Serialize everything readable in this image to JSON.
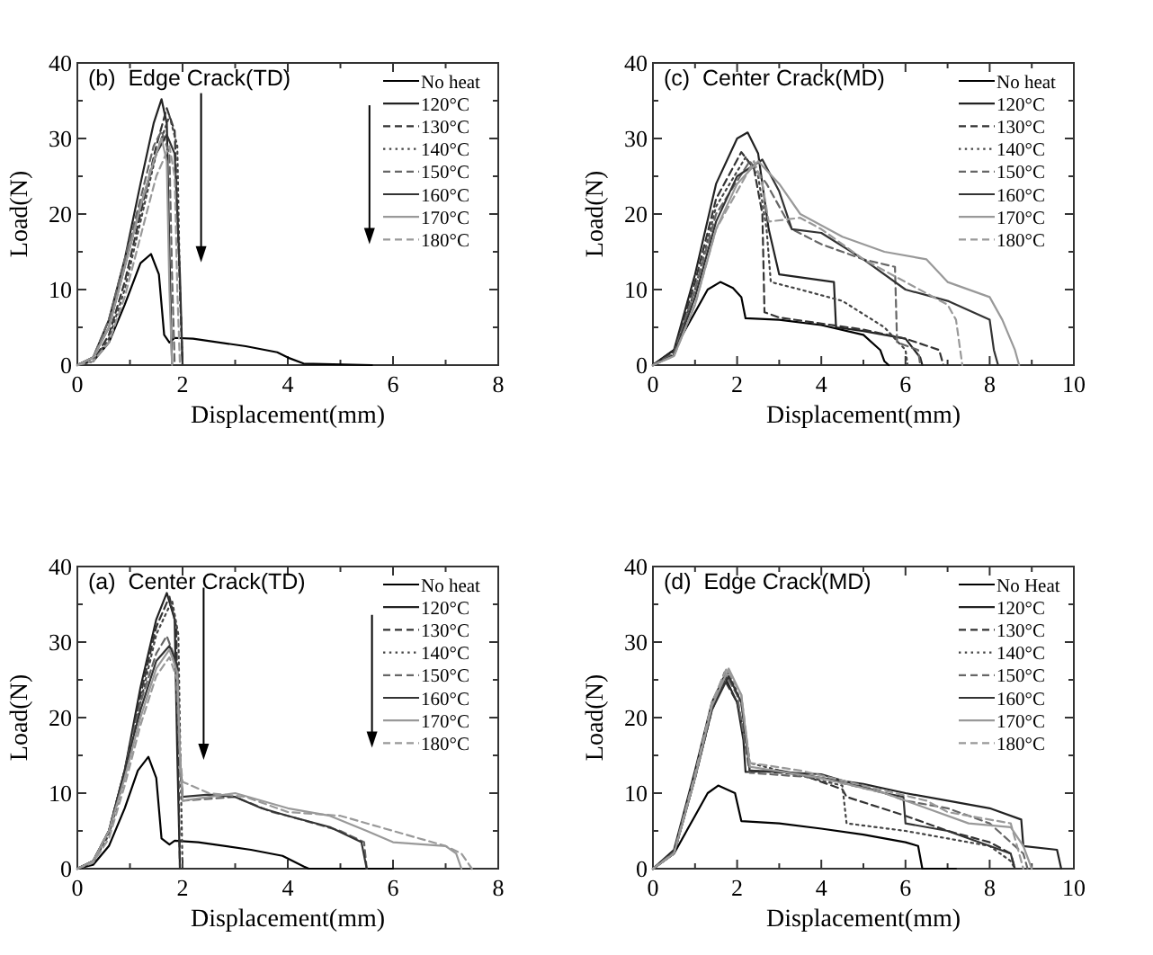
{
  "chart_data": [
    {
      "type": "line",
      "title": "(b)  Edge Crack(TD)",
      "xlabel": "Displacement(mm)",
      "ylabel": "Load(N)",
      "legend": "top right",
      "grid": false,
      "xlim": [
        0,
        8
      ],
      "xticks": [
        0,
        {
          "value": 1,
          "label": null
        },
        2,
        {
          "value": 3,
          "label": null
        },
        4,
        {
          "value": 5,
          "label": null
        },
        6,
        {
          "value": 7,
          "label": null
        },
        8
      ],
      "ylim": [
        0,
        40
      ],
      "yticks": [
        0,
        {
          "value": 5,
          "label": null
        },
        10,
        {
          "value": 15,
          "label": null
        },
        20,
        {
          "value": 25,
          "label": null
        },
        30,
        {
          "value": 35,
          "label": null
        },
        40
      ],
      "series": [
        {
          "name": "No heat",
          "color": "#000000",
          "line_style": "solid",
          "x": [
            0,
            0.3,
            0.6,
            0.9,
            1.2,
            1.4,
            1.55,
            1.65,
            1.75,
            1.85,
            2.2,
            3.2,
            3.8,
            4.0,
            4.3,
            5.6
          ],
          "values": [
            0,
            0.5,
            3,
            8,
            13.5,
            14.7,
            12,
            4,
            3,
            3.6,
            3.5,
            2.5,
            1.7,
            1.0,
            0.2,
            0
          ]
        },
        {
          "name": "120°C",
          "color": "#222222",
          "line_style": "solid",
          "x": [
            0,
            0.3,
            0.6,
            0.9,
            1.2,
            1.45,
            1.6,
            1.7,
            1.75,
            1.8
          ],
          "values": [
            0,
            1,
            6,
            14,
            24,
            32,
            35.2,
            32,
            15,
            0
          ]
        },
        {
          "name": "130°C",
          "color": "#333333",
          "line_style": "dashed",
          "x": [
            0,
            0.3,
            0.6,
            0.9,
            1.2,
            1.5,
            1.7,
            1.85,
            1.95,
            2.0
          ],
          "values": [
            0,
            0.5,
            4,
            11,
            20,
            29,
            34,
            31,
            10,
            0
          ]
        },
        {
          "name": "140°C",
          "color": "#444444",
          "line_style": "dotted",
          "x": [
            0,
            0.3,
            0.6,
            0.9,
            1.2,
            1.5,
            1.75,
            1.9,
            1.95,
            2.0
          ],
          "values": [
            0,
            0.5,
            3.5,
            10,
            19,
            28,
            33,
            29,
            10,
            0
          ]
        },
        {
          "name": "150°C",
          "color": "#666666",
          "line_style": "dashed",
          "x": [
            0,
            0.3,
            0.6,
            0.9,
            1.2,
            1.45,
            1.6,
            1.75,
            1.8,
            1.85
          ],
          "values": [
            0,
            1,
            6,
            14,
            22,
            29,
            31,
            28,
            12,
            0
          ]
        },
        {
          "name": "160°C",
          "color": "#333333",
          "line_style": "solid",
          "x": [
            0,
            0.3,
            0.6,
            0.9,
            1.2,
            1.5,
            1.7,
            1.85,
            1.95,
            2.0
          ],
          "values": [
            0,
            1,
            5,
            13,
            21,
            28,
            30.5,
            28,
            12,
            0
          ]
        },
        {
          "name": "170°C",
          "color": "#999999",
          "line_style": "solid",
          "x": [
            0,
            0.3,
            0.6,
            0.9,
            1.2,
            1.45,
            1.6,
            1.7,
            1.75,
            1.8
          ],
          "values": [
            0,
            1,
            5,
            13,
            21,
            27,
            30,
            27,
            10,
            0
          ]
        },
        {
          "name": "180°C",
          "color": "#999999",
          "line_style": "dashed",
          "x": [
            0,
            0.3,
            0.6,
            0.9,
            1.2,
            1.5,
            1.75,
            1.85,
            1.9,
            1.95
          ],
          "values": [
            0,
            0.5,
            3,
            9,
            17,
            25,
            29,
            25,
            10,
            0
          ]
        }
      ]
    },
    {
      "type": "line",
      "title": "(c)  Center Crack(MD)",
      "xlabel": "Displacement(mm)",
      "ylabel": "Load(N)",
      "legend": "top right",
      "grid": false,
      "xlim": [
        0,
        10
      ],
      "xticks": [
        0,
        {
          "value": 1,
          "label": null
        },
        2,
        {
          "value": 3,
          "label": null
        },
        4,
        {
          "value": 5,
          "label": null
        },
        6,
        {
          "value": 7,
          "label": null
        },
        8,
        {
          "value": 9,
          "label": null
        },
        10
      ],
      "ylim": [
        0,
        40
      ],
      "yticks": [
        0,
        {
          "value": 5,
          "label": null
        },
        10,
        {
          "value": 15,
          "label": null
        },
        20,
        {
          "value": 25,
          "label": null
        },
        30,
        {
          "value": 35,
          "label": null
        },
        40
      ],
      "series": [
        {
          "name": "No heat",
          "color": "#000000",
          "line_style": "solid",
          "x": [
            0,
            0.5,
            1.0,
            1.3,
            1.6,
            1.9,
            2.1,
            2.2,
            3,
            4,
            5,
            5.4,
            5.5,
            5.6
          ],
          "values": [
            0,
            2,
            7,
            10,
            11,
            10.2,
            9,
            6.2,
            6,
            5.3,
            4,
            2,
            0.5,
            0
          ]
        },
        {
          "name": "120°C",
          "color": "#222222",
          "line_style": "solid",
          "x": [
            0,
            0.5,
            1,
            1.5,
            2,
            2.25,
            2.5,
            2.75,
            3,
            4.3,
            4.35,
            5,
            6,
            6.35,
            6.4
          ],
          "values": [
            0,
            2,
            12,
            24,
            30,
            30.8,
            28,
            18,
            12,
            11,
            5,
            4.5,
            3.5,
            1,
            0
          ]
        },
        {
          "name": "130°C",
          "color": "#333333",
          "line_style": "dashed",
          "x": [
            0,
            0.5,
            1,
            1.5,
            2.1,
            2.4,
            2.6,
            2.65,
            3,
            4,
            5,
            6,
            6.8,
            6.9
          ],
          "values": [
            0,
            1.8,
            11,
            22,
            28.2,
            26,
            20,
            7,
            6.3,
            5.5,
            4.7,
            3.5,
            2,
            0
          ]
        },
        {
          "name": "140°C",
          "color": "#444444",
          "line_style": "dotted",
          "x": [
            0,
            0.5,
            1,
            1.5,
            2.2,
            2.5,
            2.7,
            2.8,
            3.5,
            4.5,
            5.5,
            6,
            6.05
          ],
          "values": [
            0,
            1.5,
            10,
            21,
            27.5,
            25,
            18,
            11,
            10,
            8.5,
            5,
            2,
            0
          ]
        },
        {
          "name": "150°C",
          "color": "#666666",
          "line_style": "dashed",
          "x": [
            0,
            0.5,
            1,
            1.5,
            2.3,
            2.7,
            3,
            3.3,
            4,
            5,
            5.75,
            5.8,
            6.3,
            6.35
          ],
          "values": [
            0,
            1.5,
            10,
            20,
            27,
            24,
            21,
            18,
            16,
            14,
            13,
            3,
            2,
            0
          ]
        },
        {
          "name": "160°C",
          "color": "#333333",
          "line_style": "solid",
          "x": [
            0,
            0.5,
            1,
            1.5,
            2,
            2.6,
            3,
            3.3,
            4,
            5,
            6,
            7,
            8.0,
            8.1,
            8.2
          ],
          "values": [
            0,
            1.3,
            9,
            19,
            25,
            27.2,
            23,
            18,
            17.5,
            14,
            10,
            8.5,
            6,
            2,
            0
          ]
        },
        {
          "name": "170°C",
          "color": "#999999",
          "line_style": "solid",
          "x": [
            0,
            0.5,
            1,
            1.5,
            2,
            2.5,
            3,
            3.5,
            4.5,
            5.5,
            6.5,
            7,
            8,
            8.3,
            8.6,
            8.7
          ],
          "values": [
            0,
            1.2,
            8,
            18,
            24,
            27,
            24,
            20,
            17,
            15,
            14,
            11,
            9,
            6,
            2,
            0
          ]
        },
        {
          "name": "180°C",
          "color": "#999999",
          "line_style": "dashed",
          "x": [
            0,
            0.5,
            1,
            1.5,
            2.4,
            2.6,
            2.75,
            3.5,
            4,
            5,
            6,
            7,
            7.2,
            7.35
          ],
          "values": [
            0,
            1.2,
            8,
            18,
            27,
            24,
            19,
            19.5,
            18,
            14,
            11,
            8,
            6,
            0
          ]
        }
      ]
    },
    {
      "type": "line",
      "title": "(a)  Center Crack(TD)",
      "xlabel": "Displacement(mm)",
      "ylabel": "Load(N)",
      "legend": "top right",
      "grid": false,
      "xlim": [
        0,
        8
      ],
      "xticks": [
        0,
        {
          "value": 1,
          "label": null
        },
        2,
        {
          "value": 3,
          "label": null
        },
        4,
        {
          "value": 5,
          "label": null
        },
        6,
        {
          "value": 7,
          "label": null
        },
        8
      ],
      "ylim": [
        0,
        40
      ],
      "yticks": [
        0,
        {
          "value": 5,
          "label": null
        },
        10,
        {
          "value": 15,
          "label": null
        },
        20,
        {
          "value": 25,
          "label": null
        },
        30,
        {
          "value": 35,
          "label": null
        },
        40
      ],
      "series": [
        {
          "name": "No heat",
          "color": "#000000",
          "line_style": "solid",
          "x": [
            0,
            0.3,
            0.6,
            0.9,
            1.15,
            1.35,
            1.5,
            1.6,
            1.75,
            1.85,
            2.3,
            3.3,
            3.9,
            4.3,
            4.4,
            6.0
          ],
          "values": [
            0,
            0.5,
            3,
            8,
            13,
            14.8,
            12,
            4,
            3.2,
            3.7,
            3.5,
            2.5,
            1.7,
            0.3,
            0,
            0
          ]
        },
        {
          "name": "120°C",
          "color": "#222222",
          "line_style": "solid",
          "x": [
            0,
            0.3,
            0.6,
            0.9,
            1.2,
            1.5,
            1.7,
            1.85,
            1.9,
            1.95
          ],
          "values": [
            0,
            1,
            5,
            13,
            24,
            33,
            36.5,
            33,
            15,
            0
          ]
        },
        {
          "name": "130°C",
          "color": "#333333",
          "line_style": "dashed",
          "x": [
            0,
            0.3,
            0.6,
            0.9,
            1.2,
            1.5,
            1.75,
            1.88,
            1.92,
            1.95
          ],
          "values": [
            0,
            1,
            5,
            13,
            23,
            32,
            36,
            32,
            14,
            0
          ]
        },
        {
          "name": "140°C",
          "color": "#444444",
          "line_style": "dotted",
          "x": [
            0,
            0.3,
            0.6,
            0.9,
            1.2,
            1.5,
            1.8,
            1.92,
            1.96,
            2.0
          ],
          "values": [
            0,
            0.8,
            4.5,
            12,
            22,
            31,
            35.5,
            31,
            14,
            0
          ]
        },
        {
          "name": "150°C",
          "color": "#666666",
          "line_style": "dashed",
          "x": [
            0,
            0.3,
            0.6,
            0.9,
            1.2,
            1.5,
            1.7,
            1.85,
            1.95,
            2.0,
            3.0,
            3.7,
            4.0,
            5.0,
            5.45,
            5.5
          ],
          "values": [
            0,
            1,
            5,
            13,
            22,
            28.5,
            30.8,
            28,
            15,
            9,
            9.5,
            7.5,
            7,
            5,
            3.5,
            0
          ]
        },
        {
          "name": "160°C",
          "color": "#333333",
          "line_style": "solid",
          "x": [
            0,
            0.3,
            0.6,
            0.9,
            1.2,
            1.5,
            1.75,
            1.9,
            1.95,
            2.0,
            2.5,
            3.0,
            3.5,
            4.0,
            4.8,
            5.4,
            5.5
          ],
          "values": [
            0,
            1,
            5,
            13,
            21,
            27.5,
            29.5,
            27,
            15,
            9.5,
            9.8,
            9.5,
            8,
            7,
            5.5,
            3.5,
            0
          ]
        },
        {
          "name": "170°C",
          "color": "#999999",
          "line_style": "solid",
          "x": [
            0,
            0.3,
            0.6,
            0.9,
            1.2,
            1.5,
            1.75,
            1.9,
            1.95,
            2.0,
            3.0,
            4.0,
            4.8,
            5.5,
            6.0,
            7.0,
            7.2,
            7.3
          ],
          "values": [
            0,
            1,
            5,
            12,
            20,
            26.5,
            29,
            26,
            15,
            9,
            10,
            8,
            7,
            5,
            3.5,
            3,
            2,
            0
          ]
        },
        {
          "name": "180°C",
          "color": "#999999",
          "line_style": "dashed",
          "x": [
            0,
            0.3,
            0.6,
            0.9,
            1.2,
            1.5,
            1.75,
            1.9,
            1.95,
            2.0,
            2.5,
            3.2,
            4.0,
            5.0,
            6.0,
            7.0,
            7.3,
            7.5
          ],
          "values": [
            0,
            0.8,
            4,
            11,
            19,
            25.5,
            28,
            25,
            15,
            11.5,
            10,
            9.5,
            7.5,
            7,
            5,
            3,
            2,
            0
          ]
        }
      ]
    },
    {
      "type": "line",
      "title": "(d)  Edge Crack(MD)",
      "xlabel": "Displacement(mm)",
      "ylabel": "Load(N)",
      "legend": "top right",
      "grid": false,
      "xlim": [
        0,
        10
      ],
      "xticks": [
        0,
        {
          "value": 1,
          "label": null
        },
        2,
        {
          "value": 3,
          "label": null
        },
        4,
        {
          "value": 5,
          "label": null
        },
        6,
        {
          "value": 7,
          "label": null
        },
        8,
        {
          "value": 9,
          "label": null
        },
        10
      ],
      "ylim": [
        0,
        40
      ],
      "yticks": [
        0,
        {
          "value": 5,
          "label": null
        },
        10,
        {
          "value": 15,
          "label": null
        },
        20,
        {
          "value": 25,
          "label": null
        },
        30,
        {
          "value": 35,
          "label": null
        },
        40
      ],
      "series": [
        {
          "name": "No Heat",
          "color": "#000000",
          "line_style": "solid",
          "x": [
            0,
            0.5,
            1.0,
            1.3,
            1.55,
            1.95,
            2.1,
            3,
            4,
            5,
            6,
            6.3,
            6.4,
            7.2
          ],
          "values": [
            0,
            2,
            7,
            10,
            11,
            10,
            6.3,
            6,
            5.3,
            4.5,
            3.5,
            3,
            0,
            0
          ]
        },
        {
          "name": "120°C",
          "color": "#222222",
          "line_style": "solid",
          "x": [
            0,
            0.5,
            1,
            1.4,
            1.7,
            2,
            2.15,
            2.2,
            3,
            4,
            5,
            6,
            7,
            8,
            8.75,
            8.8,
            9.6,
            9.7
          ],
          "values": [
            0,
            2.5,
            13,
            22,
            25.5,
            22,
            17,
            12.8,
            13,
            12,
            11.2,
            10,
            9,
            8,
            6.5,
            3,
            2.5,
            0
          ]
        },
        {
          "name": "130°C",
          "color": "#333333",
          "line_style": "dashed",
          "x": [
            0,
            0.5,
            1,
            1.4,
            1.7,
            2,
            2.25,
            2.3,
            3.5,
            4.5,
            4.6,
            6,
            7,
            8,
            8.5,
            8.6
          ],
          "values": [
            0,
            2,
            12,
            21,
            25,
            22,
            16,
            13,
            12.5,
            10.5,
            9.5,
            7,
            5,
            3.5,
            2,
            0
          ]
        },
        {
          "name": "140°C",
          "color": "#444444",
          "line_style": "dotted",
          "x": [
            0,
            0.5,
            1,
            1.4,
            1.8,
            2.1,
            2.3,
            3,
            4.5,
            4.6,
            6,
            7,
            8,
            8.5,
            8.6
          ],
          "values": [
            0,
            2,
            12,
            21,
            26,
            22,
            14,
            13,
            11,
            6,
            5,
            4,
            3,
            1,
            0
          ]
        },
        {
          "name": "150°C",
          "color": "#666666",
          "line_style": "dashed",
          "x": [
            0,
            0.5,
            1,
            1.4,
            1.7,
            2,
            2.3,
            4,
            5.5,
            6,
            7,
            8,
            8.8,
            8.9
          ],
          "values": [
            0,
            2.2,
            12.5,
            21.5,
            26,
            23,
            12.7,
            12,
            10,
            9,
            8,
            6,
            2,
            0
          ]
        },
        {
          "name": "160°C",
          "color": "#333333",
          "line_style": "solid",
          "x": [
            0,
            0.5,
            1,
            1.4,
            1.8,
            2.1,
            2.3,
            4,
            5.5,
            5.95,
            6,
            7,
            8,
            8.5,
            8.6
          ],
          "values": [
            0,
            2,
            12,
            21,
            25.5,
            22,
            13,
            12.5,
            10,
            9.5,
            6,
            5,
            3,
            2,
            0
          ]
        },
        {
          "name": "170°C",
          "color": "#999999",
          "line_style": "solid",
          "x": [
            0,
            0.5,
            1,
            1.4,
            1.8,
            2.1,
            2.3,
            4,
            5.5,
            6.5,
            7.5,
            8.5,
            8.8,
            9
          ],
          "values": [
            0,
            2,
            12,
            21.5,
            26.5,
            23,
            13.5,
            12,
            10,
            8,
            6,
            5.5,
            3,
            0
          ]
        },
        {
          "name": "180°C",
          "color": "#999999",
          "line_style": "dashed",
          "x": [
            0,
            0.5,
            1,
            1.4,
            1.75,
            2.1,
            2.3,
            3.5,
            5,
            6.5,
            7,
            8.5,
            8.7,
            8.8
          ],
          "values": [
            0,
            2,
            12.5,
            22,
            26.5,
            23,
            14,
            13,
            11,
            9,
            7.5,
            6,
            2,
            0
          ]
        }
      ]
    }
  ]
}
